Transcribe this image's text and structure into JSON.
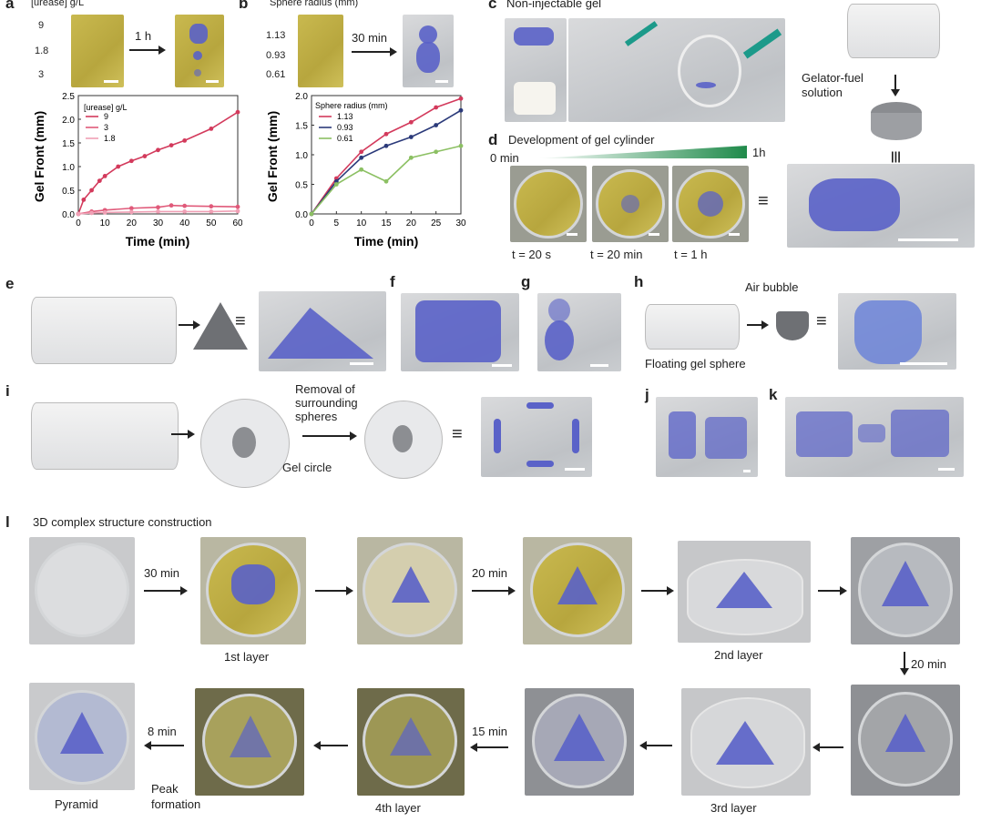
{
  "panels": {
    "a": "a",
    "b": "b",
    "c": "c",
    "d": "d",
    "e": "e",
    "f": "f",
    "g": "g",
    "h": "h",
    "i": "i",
    "j": "j",
    "k": "k",
    "l": "l"
  },
  "panel_a": {
    "header": "[urease] g/L",
    "conc_labels": [
      "9",
      "1.8",
      "3"
    ],
    "time_label": "1 h"
  },
  "panel_b": {
    "header": "Sphere radius (mm)",
    "radius_labels": [
      "1.13",
      "0.93",
      "0.61"
    ],
    "time_label": "30 min"
  },
  "panel_c": {
    "title": "Non-injectable gel",
    "solution_label": "Gelator-fuel solution",
    "equiv": "|||"
  },
  "panel_d": {
    "title": "Development of gel cylinder",
    "start_label": "0 min",
    "end_label": "1h",
    "times": [
      "t = 20 s",
      "t = 20 min",
      "t = 1 h"
    ],
    "equiv": "≡"
  },
  "panel_e": {
    "equiv": "≡"
  },
  "panel_h": {
    "air_label": "Air bubble",
    "floating_label": "Floating gel sphere",
    "equiv": "≡"
  },
  "panel_i": {
    "removal_label": "Removal of surrounding spheres",
    "circle_label": "Gel circle",
    "equiv": "≡"
  },
  "panel_l": {
    "title": "3D complex structure construction",
    "times": [
      "30 min",
      "20 min",
      "20 min",
      "15 min",
      "8 min"
    ],
    "layers": [
      "1st layer",
      "2nd layer",
      "3rd layer",
      "4th layer",
      "Pyramid"
    ],
    "peak_label": "Peak formation"
  },
  "colors": {
    "gel_blue": "#5a62c8",
    "yellow_gel": "#c9b94f",
    "series_red": "#d33a5c",
    "series_navy": "#2b3a7a",
    "series_green": "#8cc063",
    "gradient_green": "#1f8a4a"
  },
  "chart_data": [
    {
      "type": "line",
      "xlabel": "Time (min)",
      "ylabel": "Gel Front (mm)",
      "xlim": [
        0,
        60
      ],
      "ylim": [
        0,
        2.5
      ],
      "xticks": [
        "0",
        "10",
        "20",
        "30",
        "40",
        "50",
        "60"
      ],
      "yticks": [
        "0.0",
        "0.5",
        "1.0",
        "1.5",
        "2.0",
        "2.5"
      ],
      "legend_title": "[urease] g/L",
      "legend_position": "top-left",
      "series": [
        {
          "name": "9",
          "color": "#d33a5c",
          "x": [
            0,
            2,
            5,
            8,
            10,
            15,
            20,
            25,
            30,
            35,
            40,
            50,
            60
          ],
          "values": [
            0,
            0.3,
            0.5,
            0.7,
            0.8,
            1.0,
            1.12,
            1.22,
            1.35,
            1.45,
            1.55,
            1.8,
            2.15
          ]
        },
        {
          "name": "3",
          "color": "#e05a7a",
          "x": [
            0,
            5,
            10,
            20,
            30,
            35,
            40,
            50,
            60
          ],
          "values": [
            0,
            0.05,
            0.08,
            0.12,
            0.14,
            0.18,
            0.17,
            0.16,
            0.15
          ]
        },
        {
          "name": "1.8",
          "color": "#f0a0b5",
          "x": [
            0,
            5,
            10,
            20,
            30,
            40,
            50,
            60
          ],
          "values": [
            0,
            0.02,
            0.03,
            0.04,
            0.05,
            0.05,
            0.05,
            0.06
          ]
        }
      ]
    },
    {
      "type": "line",
      "xlabel": "Time (min)",
      "ylabel": "Gel Front (mm)",
      "xlim": [
        0,
        30
      ],
      "ylim": [
        0,
        2.0
      ],
      "xticks": [
        "0",
        "5",
        "10",
        "15",
        "20",
        "25",
        "30"
      ],
      "yticks": [
        "0.0",
        "0.5",
        "1.0",
        "1.5",
        "2.0"
      ],
      "legend_title": "Sphere radius (mm)",
      "legend_position": "top-left",
      "series": [
        {
          "name": "1.13",
          "color": "#d33a5c",
          "x": [
            0,
            5,
            10,
            15,
            20,
            25,
            30
          ],
          "values": [
            0,
            0.6,
            1.05,
            1.35,
            1.55,
            1.8,
            1.95
          ]
        },
        {
          "name": "0.93",
          "color": "#2b3a7a",
          "x": [
            0,
            5,
            10,
            15,
            20,
            25,
            30
          ],
          "values": [
            0,
            0.55,
            0.95,
            1.15,
            1.3,
            1.5,
            1.75
          ]
        },
        {
          "name": "0.61",
          "color": "#8cc063",
          "x": [
            0,
            5,
            10,
            15,
            20,
            25,
            30
          ],
          "values": [
            0,
            0.5,
            0.75,
            0.55,
            0.95,
            1.05,
            1.15
          ]
        }
      ]
    }
  ]
}
